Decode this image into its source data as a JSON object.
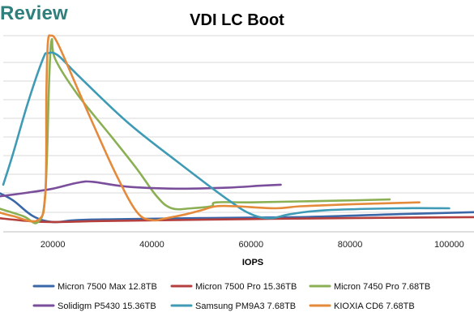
{
  "brand": "Review",
  "chart_data": {
    "type": "line",
    "title": "VDI LC Boot",
    "xlabel": "IOPS",
    "ylabel": "",
    "xlim": [
      10000,
      105000
    ],
    "ylim": [
      0,
      1
    ],
    "x_ticks": [
      20000,
      40000,
      60000,
      80000,
      100000
    ],
    "x_tick_labels": [
      "20000",
      "40000",
      "60000",
      "80000",
      "100000"
    ],
    "grid": true,
    "legend_position": "bottom",
    "series": [
      {
        "name": "Micron 7500 Max 12.8TB",
        "color": "#3a67a8",
        "points": [
          [
            9000,
            0.2
          ],
          [
            12000,
            0.16
          ],
          [
            16000,
            0.08
          ],
          [
            20000,
            0.05
          ],
          [
            25000,
            0.06
          ],
          [
            35000,
            0.065
          ],
          [
            50000,
            0.07
          ],
          [
            70000,
            0.075
          ],
          [
            90000,
            0.09
          ],
          [
            105000,
            0.1
          ]
        ]
      },
      {
        "name": "Micron 7500 Pro 15.36TB",
        "color": "#b53f3c",
        "points": [
          [
            9000,
            0.07
          ],
          [
            15000,
            0.055
          ],
          [
            20000,
            0.05
          ],
          [
            30000,
            0.055
          ],
          [
            45000,
            0.06
          ],
          [
            60000,
            0.065
          ],
          [
            80000,
            0.07
          ],
          [
            105000,
            0.075
          ]
        ]
      },
      {
        "name": "Micron 7450 Pro 7.68TB",
        "color": "#8bb054",
        "points": [
          [
            9000,
            0.12
          ],
          [
            14000,
            0.08
          ],
          [
            17000,
            0.05
          ],
          [
            18500,
            0.2
          ],
          [
            19300,
            0.8
          ],
          [
            19800,
            0.98
          ],
          [
            20500,
            0.88
          ],
          [
            25000,
            0.7
          ],
          [
            32000,
            0.48
          ],
          [
            37000,
            0.32
          ],
          [
            41000,
            0.18
          ],
          [
            44000,
            0.12
          ],
          [
            48000,
            0.12
          ],
          [
            52000,
            0.13
          ],
          [
            53000,
            0.15
          ],
          [
            60000,
            0.15
          ],
          [
            70000,
            0.155
          ],
          [
            80000,
            0.16
          ],
          [
            88000,
            0.165
          ]
        ]
      },
      {
        "name": "Solidigm P5430 15.36TB",
        "color": "#7a4e9a",
        "points": [
          [
            9000,
            0.18
          ],
          [
            15000,
            0.2
          ],
          [
            20000,
            0.22
          ],
          [
            25000,
            0.25
          ],
          [
            28000,
            0.255
          ],
          [
            35000,
            0.23
          ],
          [
            45000,
            0.22
          ],
          [
            55000,
            0.225
          ],
          [
            62000,
            0.235
          ],
          [
            66000,
            0.24
          ]
        ]
      },
      {
        "name": "Samsung PM9A3 7.68TB",
        "color": "#3f9bb5",
        "points": [
          [
            10000,
            0.24
          ],
          [
            12000,
            0.4
          ],
          [
            15000,
            0.66
          ],
          [
            18000,
            0.88
          ],
          [
            19000,
            0.91
          ],
          [
            21000,
            0.9
          ],
          [
            25000,
            0.8
          ],
          [
            35000,
            0.56
          ],
          [
            45000,
            0.36
          ],
          [
            55000,
            0.17
          ],
          [
            60000,
            0.09
          ],
          [
            64000,
            0.07
          ],
          [
            68000,
            0.09
          ],
          [
            75000,
            0.11
          ],
          [
            90000,
            0.12
          ],
          [
            100000,
            0.12
          ]
        ]
      },
      {
        "name": "KIOXIA CD6 7.68TB",
        "color": "#e58a3a",
        "points": [
          [
            9000,
            0.1
          ],
          [
            12000,
            0.08
          ],
          [
            17000,
            0.06
          ],
          [
            18500,
            0.2
          ],
          [
            18700,
            0.7
          ],
          [
            19000,
            0.96
          ],
          [
            19600,
            1.0
          ],
          [
            21000,
            0.96
          ],
          [
            25000,
            0.73
          ],
          [
            29000,
            0.5
          ],
          [
            33000,
            0.28
          ],
          [
            37000,
            0.1
          ],
          [
            40000,
            0.06
          ],
          [
            43000,
            0.07
          ],
          [
            47000,
            0.09
          ],
          [
            50000,
            0.11
          ],
          [
            53000,
            0.13
          ],
          [
            57000,
            0.13
          ],
          [
            65000,
            0.12
          ],
          [
            70000,
            0.13
          ],
          [
            80000,
            0.14
          ],
          [
            94000,
            0.15
          ]
        ]
      }
    ]
  }
}
